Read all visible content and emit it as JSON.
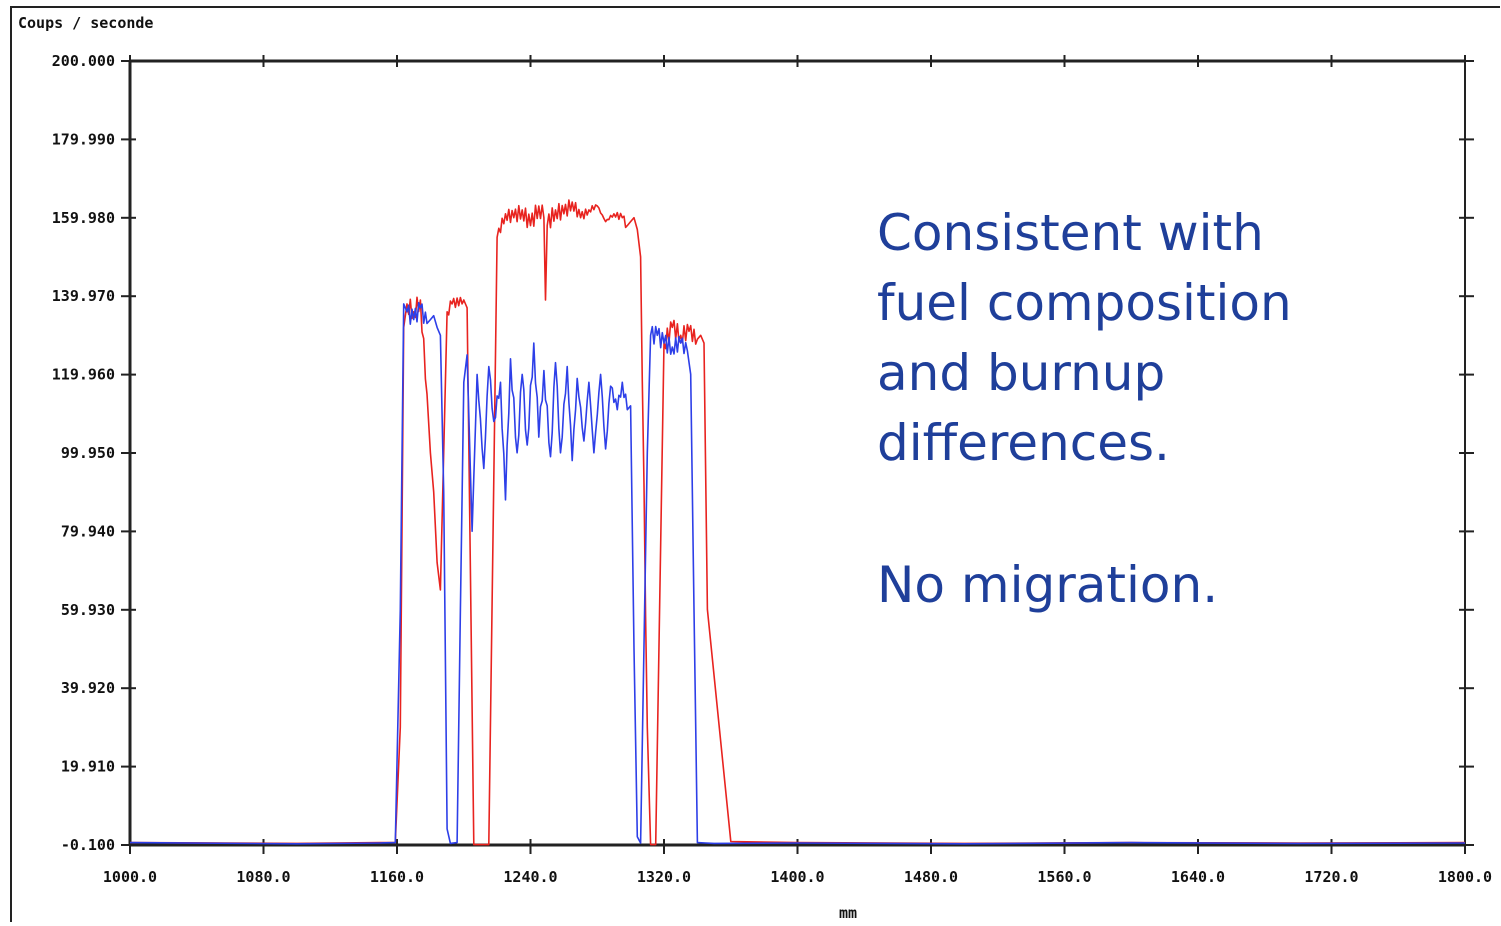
{
  "chart_data": {
    "type": "line",
    "ylabel": "Coups / seconde",
    "xlabel": "mm",
    "xlim": [
      1000,
      1800
    ],
    "ylim": [
      -0.1,
      200.0
    ],
    "x_ticks": [
      1000,
      1080,
      1160,
      1240,
      1320,
      1400,
      1480,
      1560,
      1640,
      1720,
      1800
    ],
    "x_tick_labels": [
      "1000.0",
      "1080.0",
      "1160.0",
      "1240.0",
      "1320.0",
      "1400.0",
      "1480.0",
      "1560.0",
      "1640.0",
      "1720.0",
      "1800.0"
    ],
    "y_ticks": [
      -0.1,
      19.91,
      39.92,
      59.93,
      79.94,
      99.95,
      119.96,
      139.97,
      159.98,
      179.99,
      200.0
    ],
    "y_tick_labels": [
      "-0.100",
      "19.910",
      "39.920",
      "59.930",
      "79.940",
      "99.950",
      "119.960",
      "139.970",
      "159.980",
      "179.990",
      "200.000"
    ],
    "grid": false,
    "series": [
      {
        "color": "#e8231f",
        "x": [
          1000,
          1100,
          1150,
          1159,
          1162,
          1164,
          1166,
          1170,
          1174,
          1178,
          1180,
          1182,
          1184,
          1186,
          1188,
          1190,
          1193,
          1200,
          1202,
          1204,
          1206,
          1210,
          1215,
          1220,
          1225,
          1230,
          1235,
          1240,
          1245,
          1248,
          1249,
          1250,
          1255,
          1260,
          1265,
          1270,
          1275,
          1280,
          1285,
          1290,
          1295,
          1298,
          1300,
          1302,
          1304,
          1306,
          1310,
          1312,
          1314,
          1315,
          1320,
          1325,
          1330,
          1335,
          1340,
          1342,
          1344,
          1346,
          1360,
          1400,
          1500,
          1600,
          1700,
          1800
        ],
        "y": [
          0.5,
          0.3,
          0.5,
          0.5,
          30,
          132,
          138,
          136,
          139,
          115,
          100,
          90,
          72,
          65,
          100,
          136,
          138,
          139,
          137,
          70,
          0,
          0,
          0,
          155,
          161,
          160,
          162,
          158,
          163,
          160,
          139,
          158,
          162,
          161,
          164,
          160,
          162,
          163,
          159,
          161,
          160,
          158,
          159,
          160,
          157,
          150,
          30,
          0,
          0,
          0,
          128,
          132,
          130,
          131,
          129,
          130,
          128,
          60,
          0.8,
          0.5,
          0.3,
          0.5,
          0.4,
          0.5
        ]
      },
      {
        "color": "#2d3fe8",
        "x": [
          1000,
          1100,
          1150,
          1159,
          1162,
          1164,
          1166,
          1170,
          1174,
          1178,
          1180,
          1182,
          1184,
          1186,
          1188,
          1190,
          1192,
          1196,
          1198,
          1200,
          1202,
          1205,
          1208,
          1212,
          1215,
          1218,
          1222,
          1225,
          1228,
          1232,
          1235,
          1238,
          1242,
          1245,
          1248,
          1252,
          1255,
          1258,
          1262,
          1265,
          1268,
          1272,
          1275,
          1278,
          1282,
          1285,
          1288,
          1292,
          1295,
          1298,
          1300,
          1302,
          1304,
          1306,
          1310,
          1312,
          1316,
          1320,
          1325,
          1330,
          1334,
          1336,
          1338,
          1340,
          1345,
          1350,
          1400,
          1500,
          1600,
          1700,
          1800
        ],
        "y": [
          0.5,
          0.2,
          0.4,
          0.5,
          60,
          138,
          136,
          134,
          137,
          133,
          134,
          135,
          132,
          130,
          90,
          4,
          0.3,
          0.5,
          60,
          118,
          125,
          80,
          120,
          96,
          122,
          108,
          118,
          88,
          124,
          100,
          120,
          102,
          128,
          104,
          121,
          99,
          123,
          100,
          122,
          98,
          119,
          103,
          118,
          100,
          120,
          101,
          117,
          111,
          118,
          111,
          112,
          50,
          2,
          0.4,
          100,
          130,
          130,
          128,
          127,
          128,
          126,
          120,
          60,
          0.5,
          0.4,
          0.3,
          0.4,
          0.2,
          0.5,
          0.3,
          0.4
        ]
      }
    ]
  },
  "annotation": {
    "lines": [
      "Consistent with",
      "fuel composition",
      "and burnup",
      "differences."
    ],
    "conclusion": "No migration."
  }
}
